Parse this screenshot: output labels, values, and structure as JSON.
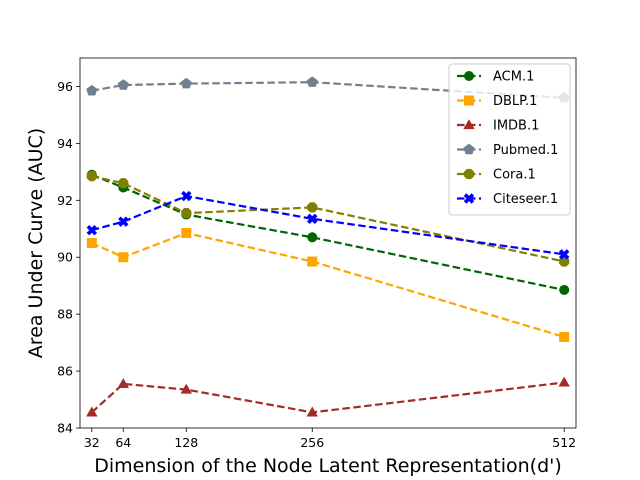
{
  "chart_data": {
    "type": "line",
    "xlabel": "Dimension of the Node Latent Representation(d')",
    "ylabel": "Area Under Curve (AUC)",
    "x": [
      32,
      64,
      128,
      256,
      512
    ],
    "x_tick_labels": [
      "32",
      "64",
      "128",
      "256",
      "512"
    ],
    "xlim": [
      20,
      524
    ],
    "ylim": [
      84,
      97
    ],
    "y_ticks": [
      84,
      86,
      88,
      90,
      92,
      94,
      96
    ],
    "grid": false,
    "legend_position": "top-right",
    "series": [
      {
        "name": "ACM.1",
        "color": "#006400",
        "marker": "circle",
        "values": [
          92.9,
          92.45,
          91.5,
          90.7,
          88.85
        ]
      },
      {
        "name": "DBLP.1",
        "color": "#ffa500",
        "marker": "square",
        "values": [
          90.5,
          90.0,
          90.85,
          89.85,
          87.2
        ]
      },
      {
        "name": "IMDB.1",
        "color": "#a52a2a",
        "marker": "triangle",
        "values": [
          84.55,
          85.55,
          85.35,
          84.55,
          85.6
        ]
      },
      {
        "name": "Pubmed.1",
        "color": "#708090",
        "marker": "pentagon",
        "values": [
          95.85,
          96.05,
          96.1,
          96.15,
          95.6
        ]
      },
      {
        "name": "Cora.1",
        "color": "#808000",
        "marker": "octagon",
        "values": [
          92.85,
          92.6,
          91.55,
          91.75,
          89.85
        ]
      },
      {
        "name": "Citeseer.1",
        "color": "#0000ff",
        "marker": "x",
        "values": [
          90.95,
          91.25,
          92.15,
          91.35,
          90.1
        ]
      }
    ]
  }
}
